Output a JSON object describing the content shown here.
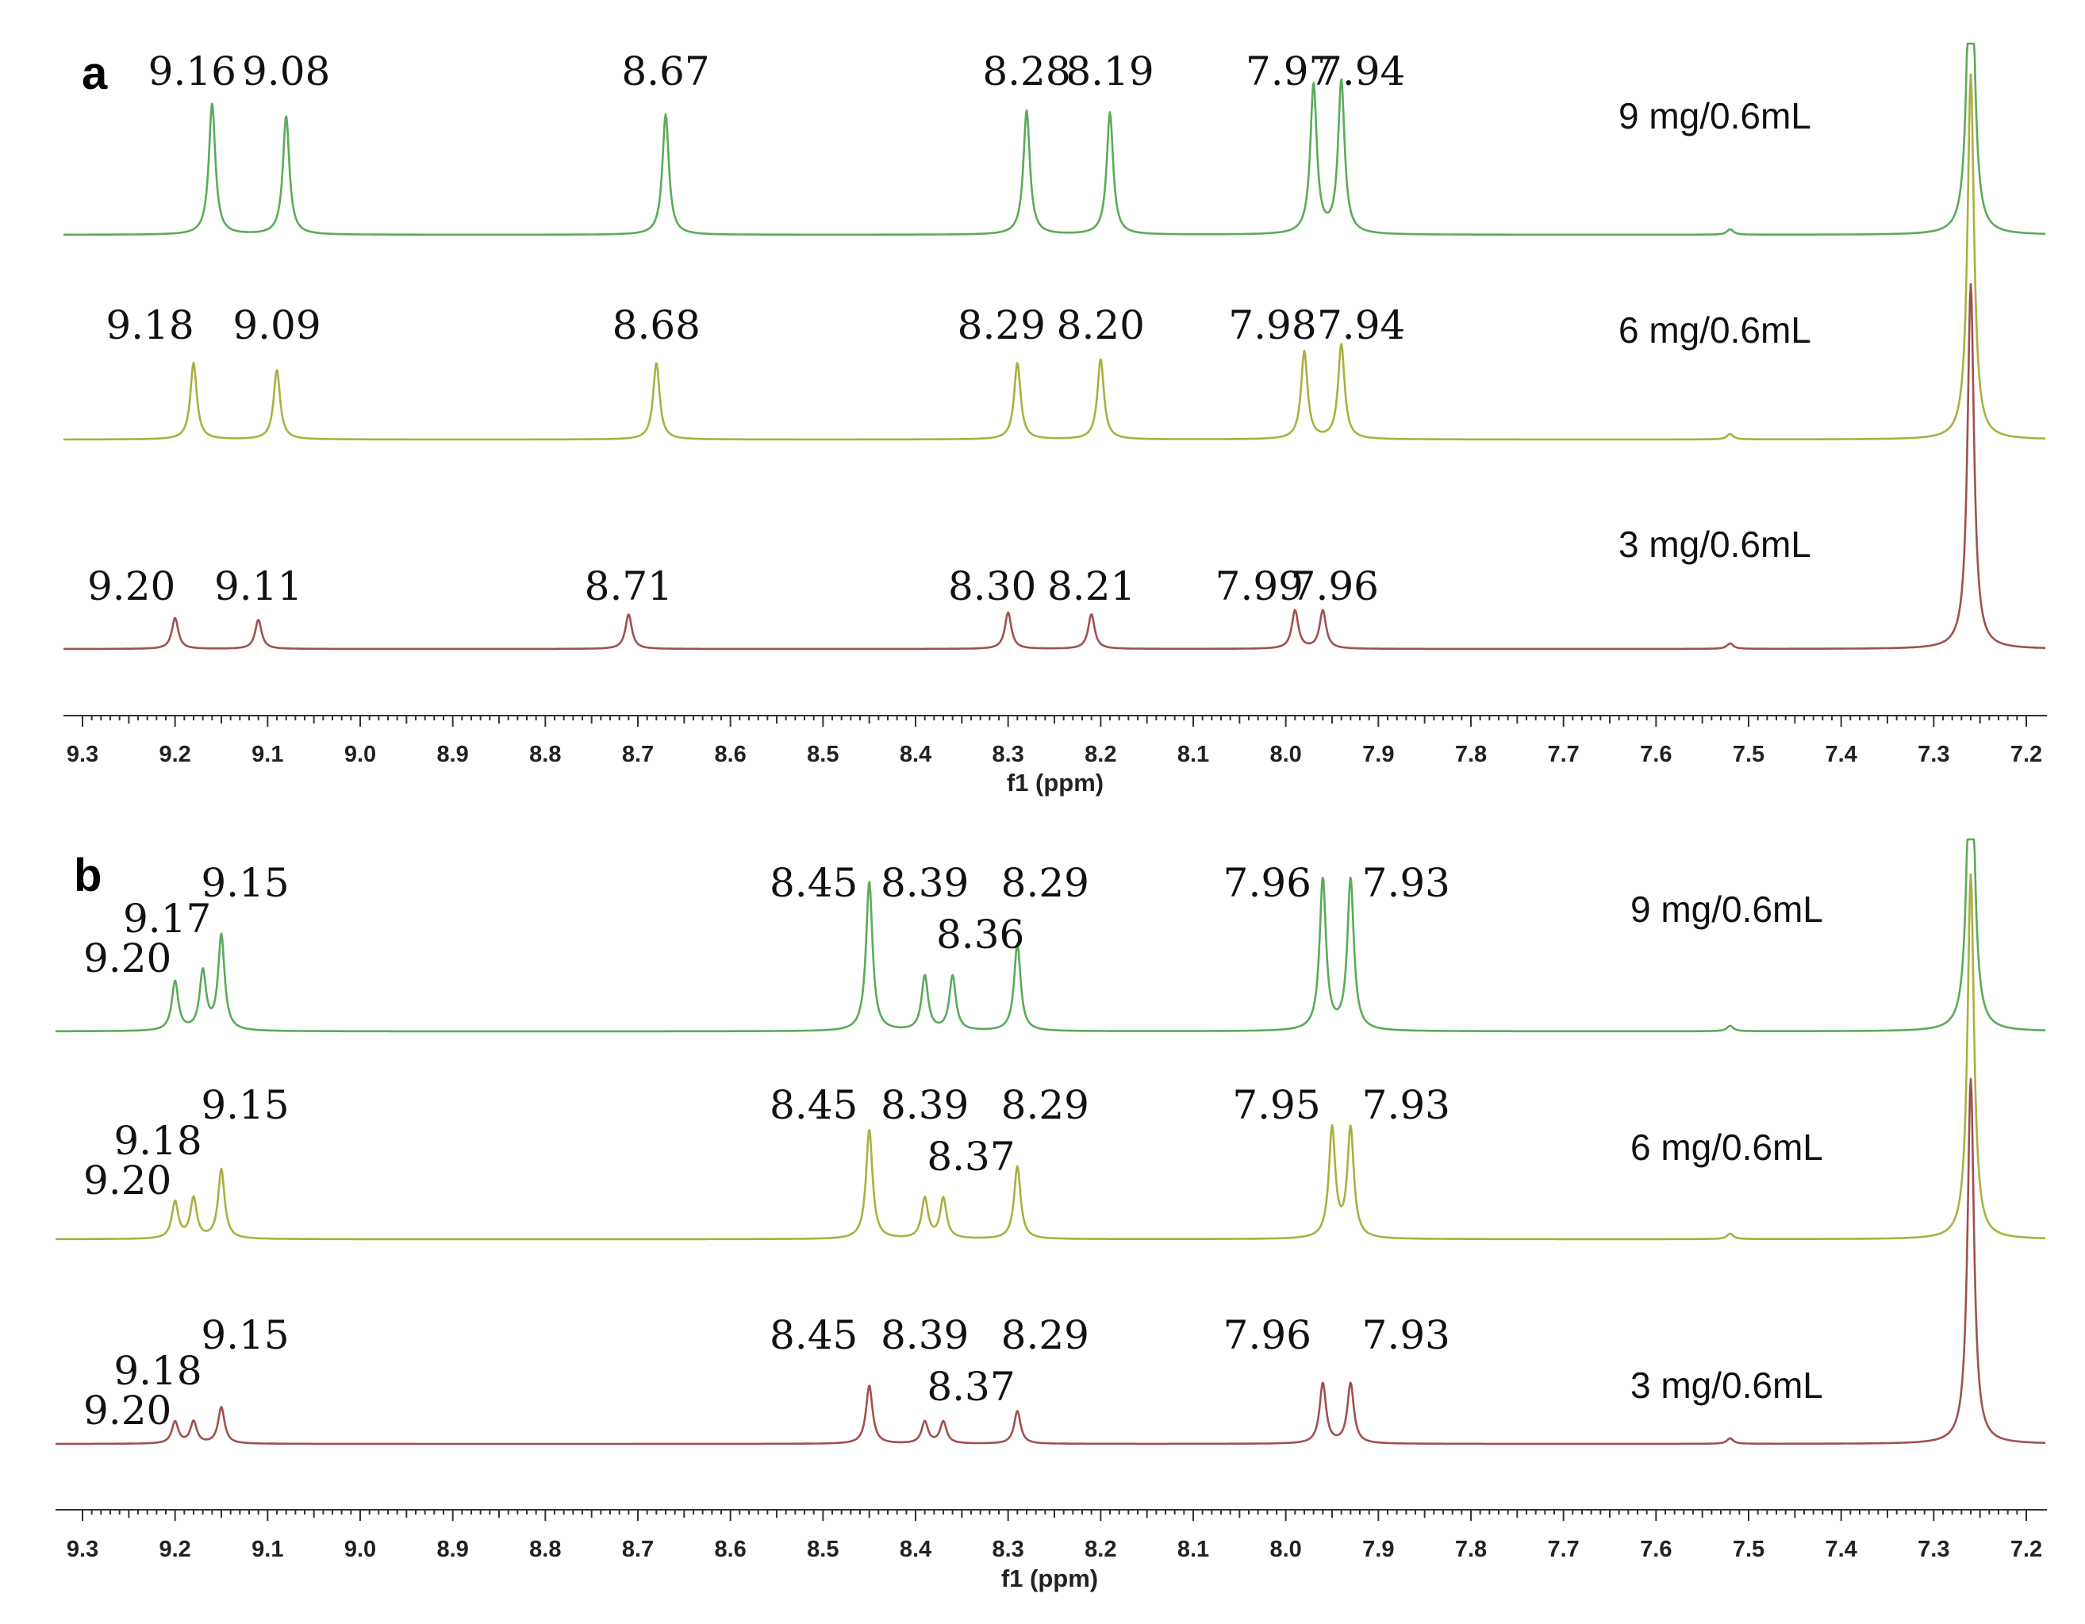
{
  "chart_data": [
    {
      "type": "line",
      "panel_label": "a",
      "xlabel": "f1 (ppm)",
      "xlim": [
        9.3,
        7.2
      ],
      "x_ticks": [
        "9.3",
        "9.2",
        "9.1",
        "9.0",
        "8.9",
        "8.8",
        "8.7",
        "8.6",
        "8.5",
        "8.4",
        "8.3",
        "8.2",
        "8.1",
        "8.0",
        "7.9",
        "7.8",
        "7.7",
        "7.6",
        "7.5",
        "7.4",
        "7.3",
        "7.2"
      ],
      "series": [
        {
          "name": "9 mg/0.6mL",
          "color": "#5aab5a",
          "peaks": [
            {
              "x": 9.16,
              "h": 0.72
            },
            {
              "x": 9.08,
              "h": 0.65
            },
            {
              "x": 8.67,
              "h": 0.66
            },
            {
              "x": 8.28,
              "h": 0.68
            },
            {
              "x": 8.19,
              "h": 0.67
            },
            {
              "x": 7.97,
              "h": 0.82
            },
            {
              "x": 7.94,
              "h": 0.84
            },
            {
              "x": 7.52,
              "h": 0.03
            },
            {
              "x": 7.26,
              "h": 2.0
            }
          ],
          "labels": [
            "9.16",
            "9.08",
            "8.67",
            "8.28",
            "8.19",
            "7.97",
            "7.94"
          ]
        },
        {
          "name": "6 mg/0.6mL",
          "color": "#aab040",
          "peaks": [
            {
              "x": 9.18,
              "h": 0.42
            },
            {
              "x": 9.09,
              "h": 0.38
            },
            {
              "x": 8.68,
              "h": 0.42
            },
            {
              "x": 8.29,
              "h": 0.42
            },
            {
              "x": 8.2,
              "h": 0.44
            },
            {
              "x": 7.98,
              "h": 0.48
            },
            {
              "x": 7.94,
              "h": 0.52
            },
            {
              "x": 7.52,
              "h": 0.03
            },
            {
              "x": 7.26,
              "h": 2.0
            }
          ],
          "labels": [
            "9.18",
            "9.09",
            "8.68",
            "8.29",
            "8.20",
            "7.98",
            "7.94"
          ]
        },
        {
          "name": "3 mg/0.6mL",
          "color": "#a05050",
          "peaks": [
            {
              "x": 9.2,
              "h": 0.17
            },
            {
              "x": 9.11,
              "h": 0.16
            },
            {
              "x": 8.71,
              "h": 0.19
            },
            {
              "x": 8.3,
              "h": 0.2
            },
            {
              "x": 8.21,
              "h": 0.19
            },
            {
              "x": 7.99,
              "h": 0.21
            },
            {
              "x": 7.96,
              "h": 0.21
            },
            {
              "x": 7.52,
              "h": 0.03
            },
            {
              "x": 7.26,
              "h": 2.0
            }
          ],
          "labels": [
            "9.20",
            "9.11",
            "8.71",
            "8.30",
            "8.21",
            "7.99",
            "7.96"
          ]
        }
      ]
    },
    {
      "type": "line",
      "panel_label": "b",
      "xlabel": "f1 (ppm)",
      "xlim": [
        9.3,
        7.2
      ],
      "x_ticks": [
        "9.3",
        "9.2",
        "9.1",
        "9.0",
        "8.9",
        "8.8",
        "8.7",
        "8.6",
        "8.5",
        "8.4",
        "8.3",
        "8.2",
        "8.1",
        "8.0",
        "7.9",
        "7.8",
        "7.7",
        "7.6",
        "7.5",
        "7.4",
        "7.3",
        "7.2"
      ],
      "series": [
        {
          "name": "9 mg/0.6mL",
          "color": "#5aab5a",
          "peaks": [
            {
              "x": 9.2,
              "h": 0.27
            },
            {
              "x": 9.17,
              "h": 0.32
            },
            {
              "x": 9.15,
              "h": 0.52
            },
            {
              "x": 8.45,
              "h": 0.82
            },
            {
              "x": 8.39,
              "h": 0.3
            },
            {
              "x": 8.36,
              "h": 0.3
            },
            {
              "x": 8.29,
              "h": 0.48
            },
            {
              "x": 7.96,
              "h": 0.83
            },
            {
              "x": 7.93,
              "h": 0.83
            },
            {
              "x": 7.52,
              "h": 0.03
            },
            {
              "x": 7.26,
              "h": 2.0
            }
          ],
          "labels": [
            "9.20",
            "9.17",
            "9.15",
            "8.45",
            "8.39",
            "8.36",
            "8.29",
            "7.96",
            "7.93"
          ]
        },
        {
          "name": "6 mg/0.6mL",
          "color": "#aab040",
          "peaks": [
            {
              "x": 9.2,
              "h": 0.2
            },
            {
              "x": 9.18,
              "h": 0.22
            },
            {
              "x": 9.15,
              "h": 0.38
            },
            {
              "x": 8.45,
              "h": 0.6
            },
            {
              "x": 8.39,
              "h": 0.22
            },
            {
              "x": 8.37,
              "h": 0.22
            },
            {
              "x": 8.29,
              "h": 0.4
            },
            {
              "x": 7.95,
              "h": 0.6
            },
            {
              "x": 7.93,
              "h": 0.6
            },
            {
              "x": 7.52,
              "h": 0.03
            },
            {
              "x": 7.26,
              "h": 2.0
            }
          ],
          "labels": [
            "9.20",
            "9.18",
            "9.15",
            "8.45",
            "8.39",
            "8.37",
            "8.29",
            "7.95",
            "7.93"
          ]
        },
        {
          "name": "3 mg/0.6mL",
          "color": "#a05050",
          "peaks": [
            {
              "x": 9.2,
              "h": 0.12
            },
            {
              "x": 9.18,
              "h": 0.12
            },
            {
              "x": 9.15,
              "h": 0.2
            },
            {
              "x": 8.45,
              "h": 0.32
            },
            {
              "x": 8.39,
              "h": 0.12
            },
            {
              "x": 8.37,
              "h": 0.12
            },
            {
              "x": 8.29,
              "h": 0.18
            },
            {
              "x": 7.96,
              "h": 0.33
            },
            {
              "x": 7.93,
              "h": 0.33
            },
            {
              "x": 7.52,
              "h": 0.03
            },
            {
              "x": 7.26,
              "h": 2.0
            }
          ],
          "labels": [
            "9.20",
            "9.18",
            "9.15",
            "8.45",
            "8.39",
            "8.37",
            "8.29",
            "7.96",
            "7.93"
          ]
        }
      ]
    }
  ]
}
